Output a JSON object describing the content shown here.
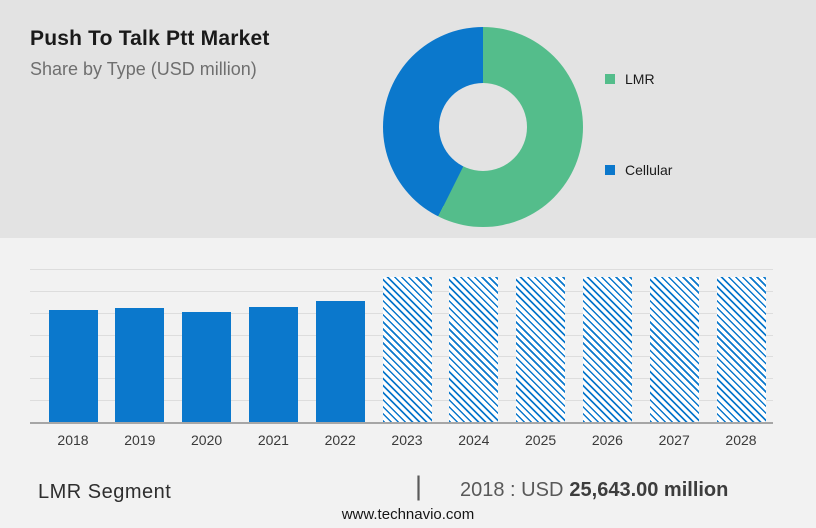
{
  "colors": {
    "hero_bg": "#e3e3e3",
    "section_bg": "#f2f2f2",
    "lmr_green": "#54bd8b",
    "cellular_blue": "#0b78cc",
    "gridline": "#dddddd",
    "axis_line": "#a6a6a6",
    "title_text": "#1a1a1a",
    "subtitle_text": "#6f6f6f"
  },
  "header": {
    "title": "Push To Talk Ptt Market",
    "subtitle": "Share by Type (USD million)"
  },
  "legend": {
    "items": [
      {
        "label": "LMR",
        "color": "#54bd8b"
      },
      {
        "label": "Cellular",
        "color": "#0b78cc"
      }
    ]
  },
  "chart_data": [
    {
      "type": "pie",
      "style": "donut",
      "title": "Share by Type (USD million)",
      "labels": [
        "LMR",
        "Cellular"
      ],
      "values": [
        57.4,
        42.6
      ],
      "unit": "percent",
      "colors": [
        "#54bd8b",
        "#0b78cc"
      ],
      "legend_position": "right"
    },
    {
      "type": "bar",
      "title": "Push To Talk Ptt Market size by year (USD million)",
      "categories": [
        "2018",
        "2019",
        "2020",
        "2021",
        "2022",
        "2023",
        "2024",
        "2025",
        "2026",
        "2027",
        "2028"
      ],
      "values": [
        25643,
        26100,
        25200,
        26300,
        27700,
        33200,
        33200,
        33200,
        33200,
        33200,
        33200
      ],
      "bar_color": "#0b78cc",
      "forecast_start_year": 2023,
      "forecast_style": "diagonal-hatched",
      "xlabel": "",
      "ylabel": "",
      "ylim": [
        0,
        35000
      ],
      "gridline_step": 5000,
      "grid": true
    }
  ],
  "footer": {
    "segment_label": "LMR Segment",
    "separator": "|",
    "stat_prefix": "2018 : USD",
    "stat_value": "25,643.00 million",
    "website": "www.technavio.com"
  }
}
